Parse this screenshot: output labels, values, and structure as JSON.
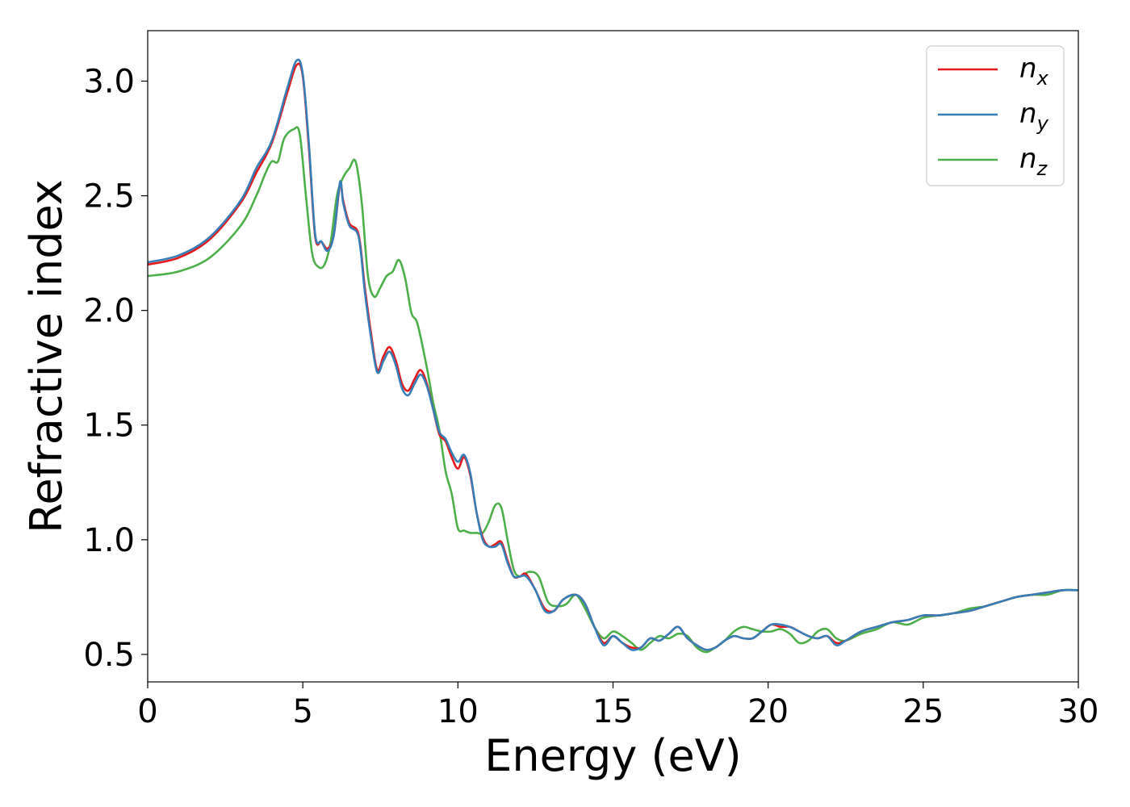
{
  "chart_data": {
    "type": "line",
    "title": "",
    "xlabel": "Energy (eV)",
    "ylabel": "Refractive index",
    "xlim": [
      0,
      30
    ],
    "ylim": [
      0.38,
      3.22
    ],
    "xticks": [
      0,
      5,
      10,
      15,
      20,
      25,
      30
    ],
    "xtick_labels": [
      "0",
      "5",
      "10",
      "15",
      "20",
      "25",
      "30"
    ],
    "yticks": [
      0.5,
      1.0,
      1.5,
      2.0,
      2.5,
      3.0
    ],
    "ytick_labels": [
      "0.5",
      "1.0",
      "1.5",
      "2.0",
      "2.5",
      "3.0"
    ],
    "grid": false,
    "legend_position": "top-right",
    "series": [
      {
        "name": "n",
        "subscript": "x",
        "color": "#e41a1c",
        "x": [
          0,
          1,
          2,
          3,
          3.5,
          4,
          4.5,
          4.8,
          5.0,
          5.2,
          5.4,
          5.6,
          5.8,
          6.0,
          6.2,
          6.3,
          6.5,
          6.8,
          7.0,
          7.2,
          7.4,
          7.6,
          7.8,
          8.0,
          8.2,
          8.4,
          8.6,
          8.8,
          9.0,
          9.2,
          9.4,
          9.6,
          9.8,
          10.0,
          10.2,
          10.4,
          10.6,
          10.8,
          11.0,
          11.2,
          11.4,
          11.6,
          11.8,
          12.0,
          12.2,
          12.5,
          12.8,
          13.1,
          13.4,
          13.8,
          14.1,
          14.4,
          14.7,
          15.0,
          15.3,
          15.6,
          15.9,
          16.2,
          16.5,
          16.8,
          17.1,
          17.4,
          17.7,
          18.0,
          18.3,
          18.6,
          18.9,
          19.2,
          19.5,
          19.8,
          20.1,
          20.4,
          20.7,
          21.0,
          21.3,
          21.6,
          21.9,
          22.2,
          22.5,
          23.0,
          23.5,
          24.0,
          24.5,
          25.0,
          25.5,
          26.0,
          26.5,
          27.0,
          27.5,
          28.0,
          28.5,
          29.0,
          29.5,
          30.0
        ],
        "y": [
          2.2,
          2.23,
          2.31,
          2.47,
          2.6,
          2.73,
          2.95,
          3.07,
          3.02,
          2.7,
          2.32,
          2.3,
          2.27,
          2.33,
          2.55,
          2.48,
          2.38,
          2.33,
          2.1,
          1.9,
          1.74,
          1.8,
          1.84,
          1.78,
          1.68,
          1.65,
          1.7,
          1.74,
          1.68,
          1.57,
          1.46,
          1.43,
          1.36,
          1.31,
          1.36,
          1.28,
          1.12,
          1.01,
          0.97,
          0.98,
          0.99,
          0.91,
          0.84,
          0.84,
          0.85,
          0.78,
          0.7,
          0.69,
          0.74,
          0.76,
          0.72,
          0.62,
          0.55,
          0.58,
          0.55,
          0.53,
          0.53,
          0.57,
          0.56,
          0.59,
          0.62,
          0.57,
          0.54,
          0.52,
          0.53,
          0.56,
          0.58,
          0.57,
          0.57,
          0.6,
          0.63,
          0.62,
          0.62,
          0.6,
          0.58,
          0.57,
          0.58,
          0.55,
          0.56,
          0.6,
          0.62,
          0.64,
          0.65,
          0.67,
          0.67,
          0.68,
          0.69,
          0.71,
          0.73,
          0.75,
          0.76,
          0.77,
          0.78,
          0.78
        ]
      },
      {
        "name": "n",
        "subscript": "y",
        "color": "#377eb8",
        "x": [
          0,
          1,
          2,
          3,
          3.5,
          4,
          4.5,
          4.8,
          5.0,
          5.2,
          5.4,
          5.6,
          5.8,
          6.0,
          6.2,
          6.3,
          6.5,
          6.8,
          7.0,
          7.2,
          7.4,
          7.6,
          7.8,
          8.0,
          8.2,
          8.4,
          8.6,
          8.8,
          9.0,
          9.2,
          9.4,
          9.6,
          9.8,
          10.0,
          10.2,
          10.4,
          10.6,
          10.8,
          11.0,
          11.2,
          11.4,
          11.6,
          11.8,
          12.0,
          12.2,
          12.5,
          12.8,
          13.1,
          13.4,
          13.8,
          14.1,
          14.4,
          14.7,
          15.0,
          15.3,
          15.6,
          15.9,
          16.2,
          16.5,
          16.8,
          17.1,
          17.4,
          17.7,
          18.0,
          18.3,
          18.6,
          18.9,
          19.2,
          19.5,
          19.8,
          20.1,
          20.4,
          20.7,
          21.0,
          21.3,
          21.6,
          21.9,
          22.2,
          22.5,
          23.0,
          23.5,
          24.0,
          24.5,
          25.0,
          25.5,
          26.0,
          26.5,
          27.0,
          27.5,
          28.0,
          28.5,
          29.0,
          29.5,
          30.0
        ],
        "y": [
          2.21,
          2.24,
          2.32,
          2.48,
          2.62,
          2.74,
          2.97,
          3.09,
          3.03,
          2.72,
          2.33,
          2.3,
          2.26,
          2.33,
          2.56,
          2.47,
          2.37,
          2.32,
          2.08,
          1.88,
          1.73,
          1.78,
          1.82,
          1.76,
          1.66,
          1.63,
          1.68,
          1.72,
          1.67,
          1.57,
          1.47,
          1.44,
          1.38,
          1.34,
          1.37,
          1.29,
          1.12,
          1.0,
          0.97,
          0.97,
          0.98,
          0.9,
          0.84,
          0.84,
          0.84,
          0.78,
          0.69,
          0.69,
          0.74,
          0.76,
          0.72,
          0.62,
          0.54,
          0.58,
          0.55,
          0.52,
          0.53,
          0.57,
          0.56,
          0.59,
          0.62,
          0.57,
          0.54,
          0.52,
          0.53,
          0.56,
          0.58,
          0.57,
          0.57,
          0.6,
          0.63,
          0.63,
          0.62,
          0.6,
          0.58,
          0.57,
          0.58,
          0.54,
          0.56,
          0.6,
          0.62,
          0.64,
          0.65,
          0.67,
          0.67,
          0.68,
          0.69,
          0.71,
          0.73,
          0.75,
          0.76,
          0.77,
          0.78,
          0.78
        ]
      },
      {
        "name": "n",
        "subscript": "z",
        "color": "#4daf4a",
        "x": [
          0,
          1,
          2,
          3,
          3.5,
          3.8,
          4.0,
          4.2,
          4.4,
          4.7,
          4.9,
          5.1,
          5.3,
          5.5,
          5.7,
          5.9,
          6.1,
          6.3,
          6.5,
          6.7,
          6.9,
          7.1,
          7.3,
          7.5,
          7.7,
          7.9,
          8.1,
          8.3,
          8.5,
          8.7,
          9.0,
          9.2,
          9.4,
          9.6,
          9.8,
          10.0,
          10.2,
          10.4,
          10.6,
          10.8,
          11.0,
          11.2,
          11.4,
          11.6,
          11.8,
          12.0,
          12.3,
          12.6,
          12.9,
          13.2,
          13.5,
          13.8,
          14.1,
          14.4,
          14.7,
          15.0,
          15.3,
          15.6,
          15.9,
          16.2,
          16.5,
          16.8,
          17.1,
          17.4,
          17.7,
          18.0,
          18.3,
          18.6,
          18.9,
          19.2,
          19.5,
          19.8,
          20.1,
          20.4,
          20.7,
          21.0,
          21.3,
          21.6,
          21.9,
          22.2,
          22.5,
          23.0,
          23.5,
          24.0,
          24.5,
          25.0,
          25.5,
          26.0,
          26.5,
          27.0,
          27.5,
          28.0,
          28.5,
          29.0,
          29.5,
          30.0
        ],
        "y": [
          2.15,
          2.17,
          2.23,
          2.37,
          2.5,
          2.6,
          2.65,
          2.65,
          2.75,
          2.79,
          2.77,
          2.5,
          2.25,
          2.19,
          2.2,
          2.3,
          2.5,
          2.58,
          2.62,
          2.65,
          2.47,
          2.15,
          2.06,
          2.1,
          2.15,
          2.17,
          2.22,
          2.14,
          1.99,
          1.94,
          1.75,
          1.6,
          1.48,
          1.3,
          1.2,
          1.05,
          1.04,
          1.03,
          1.03,
          1.03,
          1.08,
          1.15,
          1.14,
          1.0,
          0.87,
          0.84,
          0.86,
          0.84,
          0.73,
          0.71,
          0.72,
          0.76,
          0.7,
          0.62,
          0.57,
          0.6,
          0.58,
          0.55,
          0.52,
          0.55,
          0.58,
          0.57,
          0.59,
          0.58,
          0.53,
          0.51,
          0.53,
          0.56,
          0.6,
          0.62,
          0.61,
          0.6,
          0.6,
          0.61,
          0.59,
          0.55,
          0.56,
          0.6,
          0.61,
          0.57,
          0.56,
          0.59,
          0.61,
          0.64,
          0.63,
          0.66,
          0.67,
          0.68,
          0.7,
          0.71,
          0.73,
          0.75,
          0.76,
          0.76,
          0.78,
          0.78
        ]
      }
    ]
  }
}
